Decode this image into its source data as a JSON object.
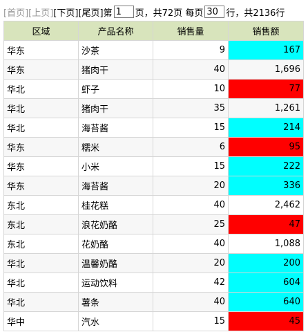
{
  "pager": {
    "first": "[首页]",
    "prev": "[上页]",
    "next": "[下页]",
    "last": "[尾页]",
    "page_prefix": "第",
    "page_value": "1",
    "page_suffix": "页，共72页 每页",
    "per_page_value": "30",
    "per_page_suffix": "行，共2136行"
  },
  "table": {
    "columns": [
      "区域",
      "产品名称",
      "销售量",
      "销售额"
    ],
    "rows": [
      {
        "region": "华东",
        "product": "沙茶",
        "qty": "9",
        "amount": "167",
        "highlight": "cyan"
      },
      {
        "region": "华东",
        "product": "猪肉干",
        "qty": "40",
        "amount": "1,696",
        "highlight": "none"
      },
      {
        "region": "华北",
        "product": "虾子",
        "qty": "10",
        "amount": "77",
        "highlight": "red"
      },
      {
        "region": "华北",
        "product": "猪肉干",
        "qty": "35",
        "amount": "1,261",
        "highlight": "none"
      },
      {
        "region": "华北",
        "product": "海苔酱",
        "qty": "15",
        "amount": "214",
        "highlight": "cyan"
      },
      {
        "region": "华东",
        "product": "糯米",
        "qty": "6",
        "amount": "95",
        "highlight": "red"
      },
      {
        "region": "华东",
        "product": "小米",
        "qty": "15",
        "amount": "222",
        "highlight": "cyan"
      },
      {
        "region": "华东",
        "product": "海苔酱",
        "qty": "20",
        "amount": "336",
        "highlight": "cyan"
      },
      {
        "region": "东北",
        "product": "桂花糕",
        "qty": "40",
        "amount": "2,462",
        "highlight": "none"
      },
      {
        "region": "东北",
        "product": "浪花奶酪",
        "qty": "25",
        "amount": "47",
        "highlight": "red"
      },
      {
        "region": "东北",
        "product": "花奶酪",
        "qty": "40",
        "amount": "1,088",
        "highlight": "none"
      },
      {
        "region": "华北",
        "product": "温馨奶酪",
        "qty": "20",
        "amount": "200",
        "highlight": "cyan"
      },
      {
        "region": "华北",
        "product": "运动饮料",
        "qty": "42",
        "amount": "604",
        "highlight": "cyan"
      },
      {
        "region": "华北",
        "product": "薯条",
        "qty": "40",
        "amount": "640",
        "highlight": "cyan"
      },
      {
        "region": "华中",
        "product": "汽水",
        "qty": "15",
        "amount": "45",
        "highlight": "red"
      }
    ]
  },
  "colors": {
    "header_bg": "#d8e4bc",
    "highlight_cyan": "#00ffff",
    "highlight_red": "#ff0000"
  }
}
